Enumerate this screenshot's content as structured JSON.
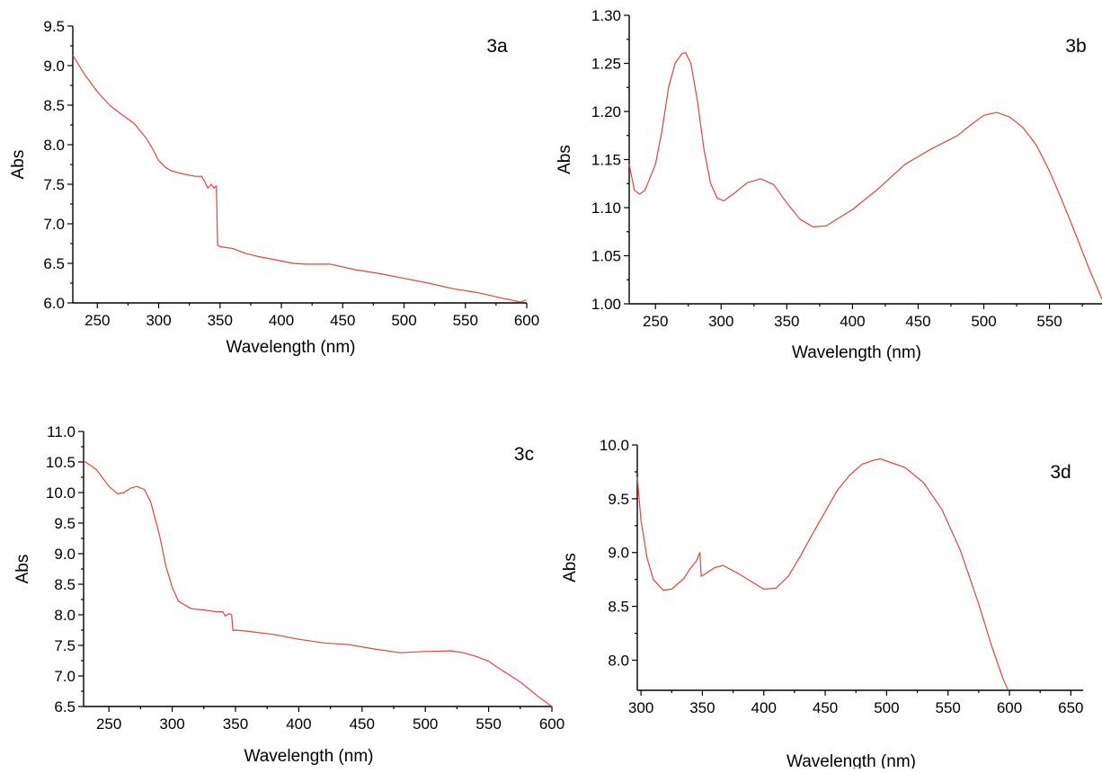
{
  "chart_data": [
    {
      "id": "3a",
      "type": "line",
      "label": "3a",
      "xlabel": "Wavelength (nm)",
      "ylabel": "Abs",
      "xlim": [
        230,
        600
      ],
      "ylim": [
        6.0,
        9.5
      ],
      "xticks": [
        250,
        300,
        350,
        400,
        450,
        500,
        550,
        600
      ],
      "yticks": [
        "6.0",
        "6.5",
        "7.0",
        "7.5",
        "8.0",
        "8.5",
        "9.0",
        "9.5"
      ],
      "color": "#e0433c",
      "points": [
        [
          230,
          9.13
        ],
        [
          240,
          8.88
        ],
        [
          250,
          8.67
        ],
        [
          260,
          8.5
        ],
        [
          270,
          8.38
        ],
        [
          280,
          8.27
        ],
        [
          290,
          8.08
        ],
        [
          295,
          7.95
        ],
        [
          300,
          7.8
        ],
        [
          305,
          7.72
        ],
        [
          310,
          7.67
        ],
        [
          320,
          7.63
        ],
        [
          330,
          7.6
        ],
        [
          335,
          7.6
        ],
        [
          338,
          7.52
        ],
        [
          340,
          7.45
        ],
        [
          343,
          7.5
        ],
        [
          345,
          7.45
        ],
        [
          347,
          7.48
        ],
        [
          348,
          6.73
        ],
        [
          350,
          6.71
        ],
        [
          360,
          6.69
        ],
        [
          370,
          6.63
        ],
        [
          380,
          6.59
        ],
        [
          400,
          6.53
        ],
        [
          410,
          6.5
        ],
        [
          420,
          6.49
        ],
        [
          440,
          6.49
        ],
        [
          460,
          6.42
        ],
        [
          480,
          6.37
        ],
        [
          500,
          6.31
        ],
        [
          520,
          6.25
        ],
        [
          540,
          6.18
        ],
        [
          560,
          6.13
        ],
        [
          580,
          6.06
        ],
        [
          595,
          6.01
        ],
        [
          600,
          6.04
        ]
      ]
    },
    {
      "id": "3b",
      "type": "line",
      "label": "3b",
      "xlabel": "Wavelength (nm)",
      "ylabel": "Abs",
      "xlim": [
        230,
        590
      ],
      "ylim": [
        1.0,
        1.3
      ],
      "xticks": [
        250,
        300,
        350,
        400,
        450,
        500,
        550
      ],
      "yticks": [
        "1.00",
        "1.05",
        "1.10",
        "1.15",
        "1.20",
        "1.25",
        "1.30"
      ],
      "color": "#e0433c",
      "points": [
        [
          230,
          1.145
        ],
        [
          234,
          1.118
        ],
        [
          238,
          1.114
        ],
        [
          242,
          1.118
        ],
        [
          250,
          1.145
        ],
        [
          255,
          1.18
        ],
        [
          260,
          1.225
        ],
        [
          265,
          1.25
        ],
        [
          270,
          1.26
        ],
        [
          273,
          1.261
        ],
        [
          277,
          1.25
        ],
        [
          282,
          1.21
        ],
        [
          287,
          1.16
        ],
        [
          292,
          1.125
        ],
        [
          297,
          1.11
        ],
        [
          302,
          1.107
        ],
        [
          310,
          1.115
        ],
        [
          320,
          1.126
        ],
        [
          330,
          1.13
        ],
        [
          340,
          1.124
        ],
        [
          350,
          1.105
        ],
        [
          360,
          1.088
        ],
        [
          370,
          1.08
        ],
        [
          380,
          1.081
        ],
        [
          400,
          1.098
        ],
        [
          420,
          1.12
        ],
        [
          440,
          1.145
        ],
        [
          460,
          1.161
        ],
        [
          480,
          1.175
        ],
        [
          490,
          1.186
        ],
        [
          500,
          1.196
        ],
        [
          510,
          1.199
        ],
        [
          520,
          1.194
        ],
        [
          530,
          1.183
        ],
        [
          540,
          1.165
        ],
        [
          550,
          1.138
        ],
        [
          560,
          1.106
        ],
        [
          570,
          1.072
        ],
        [
          580,
          1.037
        ],
        [
          590,
          1.005
        ]
      ]
    },
    {
      "id": "3c",
      "type": "line",
      "label": "3c",
      "xlabel": "Wavelength (nm)",
      "ylabel": "Abs",
      "xlim": [
        230,
        600
      ],
      "ylim": [
        6.5,
        11.0
      ],
      "xticks": [
        250,
        300,
        350,
        400,
        450,
        500,
        550,
        600
      ],
      "yticks": [
        "6.5",
        "7.0",
        "7.5",
        "8.0",
        "8.5",
        "9.0",
        "9.5",
        "10.0",
        "10.5",
        "11.0"
      ],
      "color": "#e0433c",
      "points": [
        [
          230,
          10.52
        ],
        [
          240,
          10.38
        ],
        [
          250,
          10.1
        ],
        [
          257,
          9.98
        ],
        [
          262,
          10.0
        ],
        [
          267,
          10.07
        ],
        [
          272,
          10.1
        ],
        [
          278,
          10.05
        ],
        [
          283,
          9.85
        ],
        [
          290,
          9.3
        ],
        [
          295,
          8.8
        ],
        [
          300,
          8.45
        ],
        [
          305,
          8.22
        ],
        [
          315,
          8.1
        ],
        [
          325,
          8.08
        ],
        [
          335,
          8.05
        ],
        [
          340,
          8.05
        ],
        [
          342,
          7.98
        ],
        [
          345,
          8.02
        ],
        [
          347,
          8.0
        ],
        [
          348,
          7.74
        ],
        [
          350,
          7.75
        ],
        [
          360,
          7.73
        ],
        [
          380,
          7.68
        ],
        [
          400,
          7.6
        ],
        [
          420,
          7.54
        ],
        [
          440,
          7.51
        ],
        [
          460,
          7.44
        ],
        [
          480,
          7.38
        ],
        [
          500,
          7.4
        ],
        [
          520,
          7.41
        ],
        [
          530,
          7.38
        ],
        [
          540,
          7.32
        ],
        [
          550,
          7.24
        ],
        [
          560,
          7.1
        ],
        [
          575,
          6.9
        ],
        [
          590,
          6.65
        ],
        [
          600,
          6.5
        ]
      ]
    },
    {
      "id": "3d",
      "type": "line",
      "label": "3d",
      "xlabel": "Wavelength (nm)",
      "ylabel": "Abs",
      "xlim": [
        297,
        660
      ],
      "ylim": [
        7.72,
        10.0
      ],
      "xticks": [
        300,
        350,
        400,
        450,
        500,
        550,
        600,
        650
      ],
      "yticks": [
        "8.0",
        "8.5",
        "9.0",
        "9.5",
        "10.0"
      ],
      "color": "#e0433c",
      "points": [
        [
          297,
          9.7
        ],
        [
          300,
          9.3
        ],
        [
          305,
          8.95
        ],
        [
          310,
          8.75
        ],
        [
          318,
          8.65
        ],
        [
          325,
          8.66
        ],
        [
          335,
          8.76
        ],
        [
          340,
          8.85
        ],
        [
          345,
          8.92
        ],
        [
          348,
          9.0
        ],
        [
          349,
          8.78
        ],
        [
          352,
          8.8
        ],
        [
          360,
          8.86
        ],
        [
          367,
          8.88
        ],
        [
          380,
          8.8
        ],
        [
          390,
          8.73
        ],
        [
          400,
          8.66
        ],
        [
          410,
          8.67
        ],
        [
          420,
          8.78
        ],
        [
          430,
          8.97
        ],
        [
          440,
          9.18
        ],
        [
          450,
          9.38
        ],
        [
          460,
          9.58
        ],
        [
          470,
          9.72
        ],
        [
          480,
          9.82
        ],
        [
          490,
          9.86
        ],
        [
          495,
          9.87
        ],
        [
          500,
          9.85
        ],
        [
          515,
          9.79
        ],
        [
          530,
          9.65
        ],
        [
          545,
          9.4
        ],
        [
          560,
          9.02
        ],
        [
          575,
          8.52
        ],
        [
          585,
          8.15
        ],
        [
          595,
          7.82
        ],
        [
          599,
          7.72
        ]
      ]
    }
  ]
}
